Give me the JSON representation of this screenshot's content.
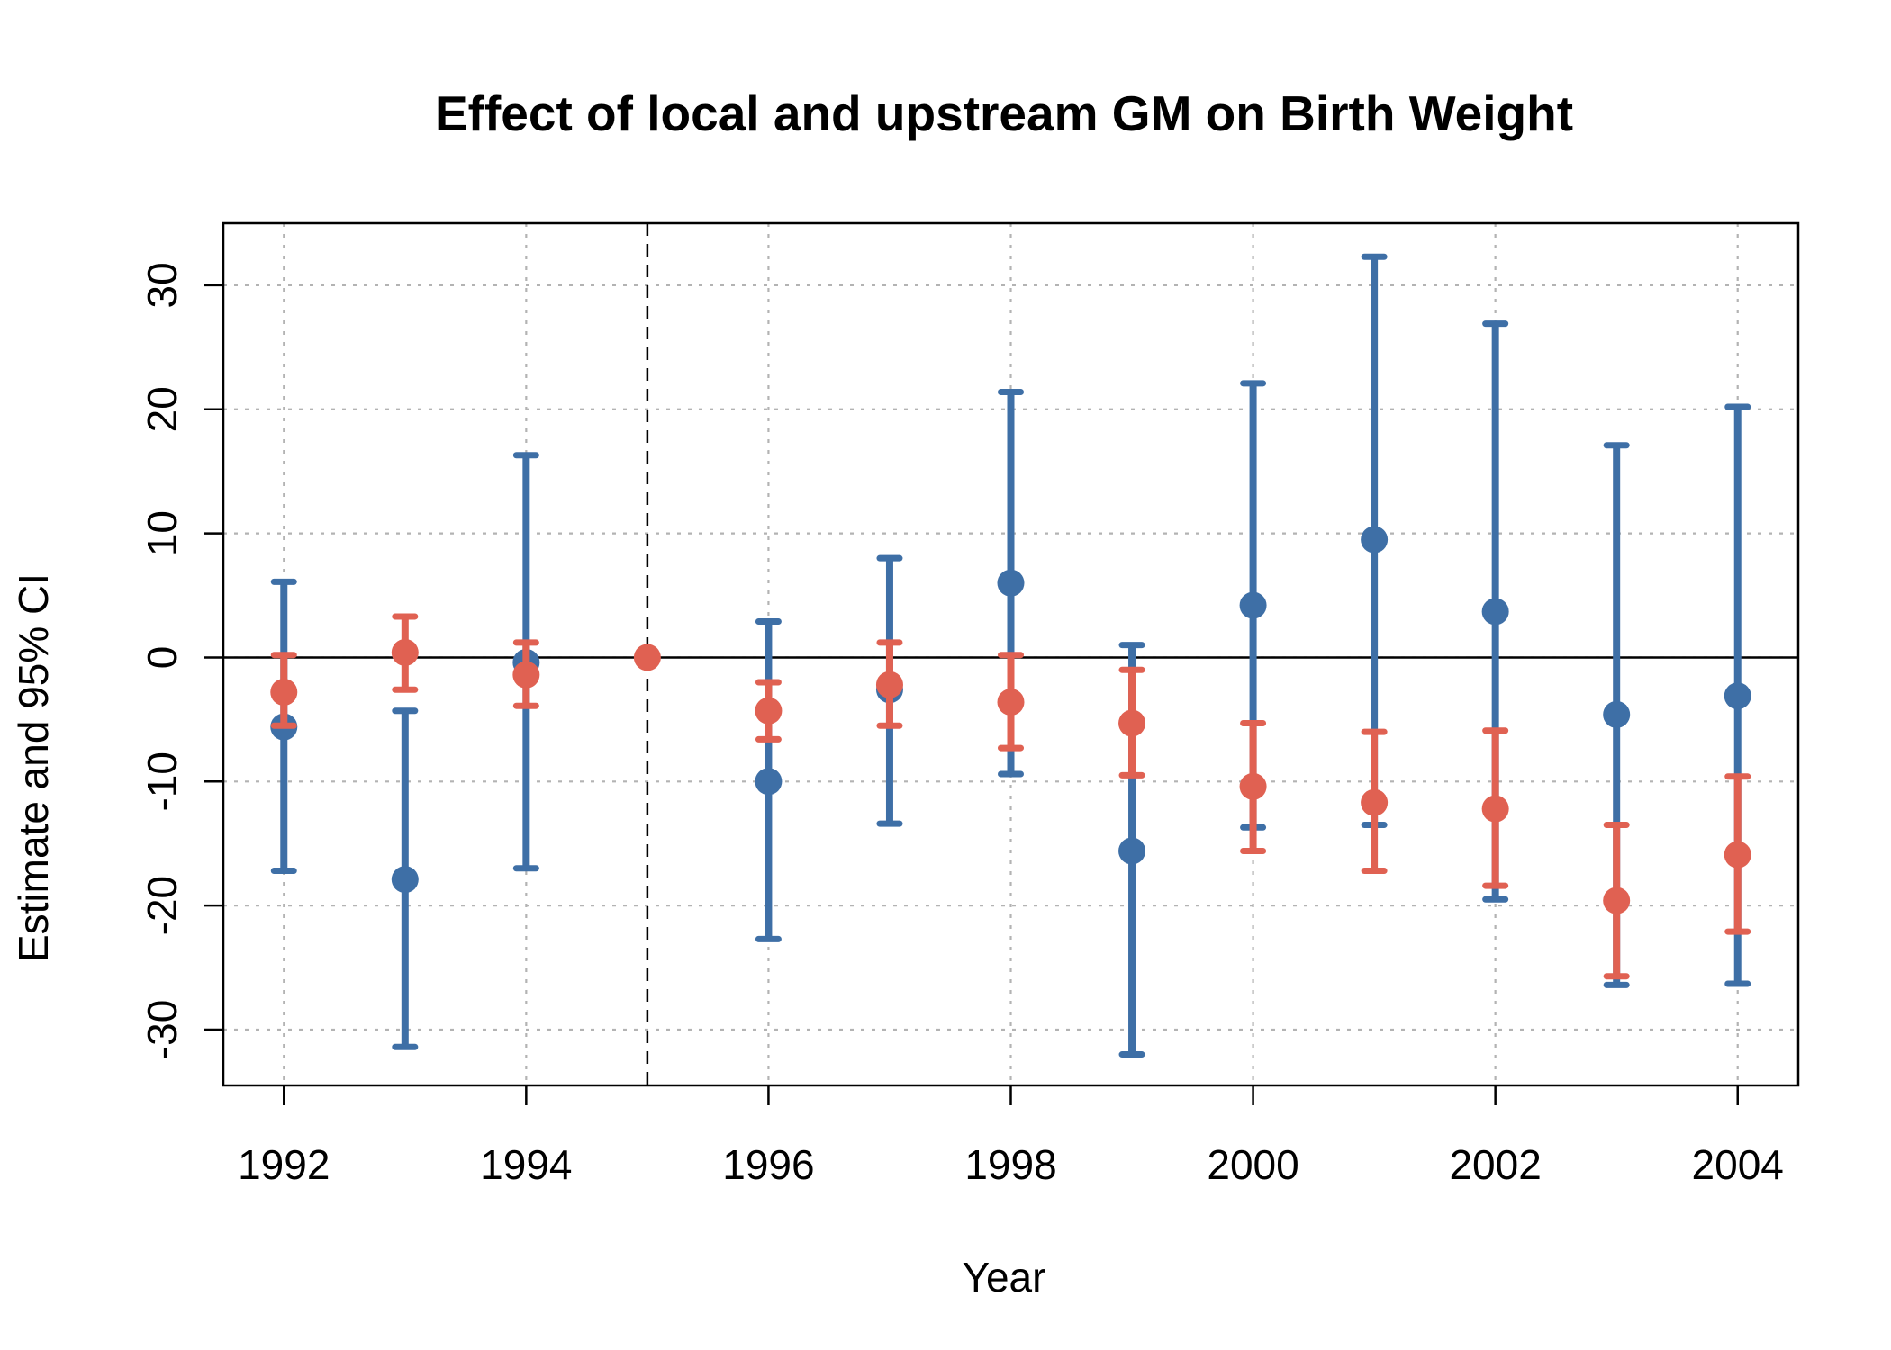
{
  "chart_data": {
    "type": "scatter",
    "title": "Effect of local and upstream GM on Birth Weight",
    "xlabel": "Year",
    "ylabel": "Estimate and 95% CI",
    "xlim": [
      1991.5,
      2004.5
    ],
    "ylim": [
      -34.5,
      35
    ],
    "x_ticks": [
      1992,
      1994,
      1996,
      1998,
      2000,
      2002,
      2004
    ],
    "y_ticks": [
      -30,
      -20,
      -10,
      0,
      10,
      20,
      30
    ],
    "x_tick_labels": [
      "1992",
      "1994",
      "1996",
      "1998",
      "2000",
      "2002",
      "2004"
    ],
    "y_tick_labels": [
      "-30",
      "-20",
      "-10",
      "0",
      "10",
      "20",
      "30"
    ],
    "grid": true,
    "reference_hline": 0,
    "reference_vline": 1995,
    "series": [
      {
        "color": "#3e6fa6",
        "points": [
          {
            "x": 1992,
            "y": -5.6,
            "lo": -17.2,
            "hi": 6.1
          },
          {
            "x": 1993,
            "y": -17.9,
            "lo": -31.4,
            "hi": -4.3
          },
          {
            "x": 1994,
            "y": -0.4,
            "lo": -17.0,
            "hi": 16.3
          },
          {
            "x": 1996,
            "y": -10.0,
            "lo": -22.7,
            "hi": 2.9
          },
          {
            "x": 1997,
            "y": -2.6,
            "lo": -13.4,
            "hi": 8.0
          },
          {
            "x": 1998,
            "y": 6.0,
            "lo": -9.4,
            "hi": 21.4
          },
          {
            "x": 1999,
            "y": -15.6,
            "lo": -32.0,
            "hi": 1.0
          },
          {
            "x": 2000,
            "y": 4.2,
            "lo": -13.7,
            "hi": 22.1
          },
          {
            "x": 2001,
            "y": 9.5,
            "lo": -13.5,
            "hi": 32.3
          },
          {
            "x": 2002,
            "y": 3.7,
            "lo": -19.5,
            "hi": 26.9
          },
          {
            "x": 2003,
            "y": -4.6,
            "lo": -26.4,
            "hi": 17.1
          },
          {
            "x": 2004,
            "y": -3.1,
            "lo": -26.3,
            "hi": 20.2
          }
        ]
      },
      {
        "color": "#e06152",
        "points": [
          {
            "x": 1992,
            "y": -2.8,
            "lo": -5.5,
            "hi": 0.2
          },
          {
            "x": 1993,
            "y": 0.4,
            "lo": -2.6,
            "hi": 3.3
          },
          {
            "x": 1994,
            "y": -1.4,
            "lo": -3.9,
            "hi": 1.2
          },
          {
            "x": 1995,
            "y": 0.0,
            "lo": 0.0,
            "hi": 0.0
          },
          {
            "x": 1996,
            "y": -4.3,
            "lo": -6.6,
            "hi": -2.0
          },
          {
            "x": 1997,
            "y": -2.2,
            "lo": -5.5,
            "hi": 1.2
          },
          {
            "x": 1998,
            "y": -3.6,
            "lo": -7.3,
            "hi": 0.2
          },
          {
            "x": 1999,
            "y": -5.3,
            "lo": -9.5,
            "hi": -1.0
          },
          {
            "x": 2000,
            "y": -10.4,
            "lo": -15.6,
            "hi": -5.3
          },
          {
            "x": 2001,
            "y": -11.7,
            "lo": -17.2,
            "hi": -6.0
          },
          {
            "x": 2002,
            "y": -12.2,
            "lo": -18.4,
            "hi": -5.9
          },
          {
            "x": 2003,
            "y": -19.6,
            "lo": -25.7,
            "hi": -13.5
          },
          {
            "x": 2004,
            "y": -15.9,
            "lo": -22.1,
            "hi": -9.6
          }
        ]
      }
    ]
  }
}
